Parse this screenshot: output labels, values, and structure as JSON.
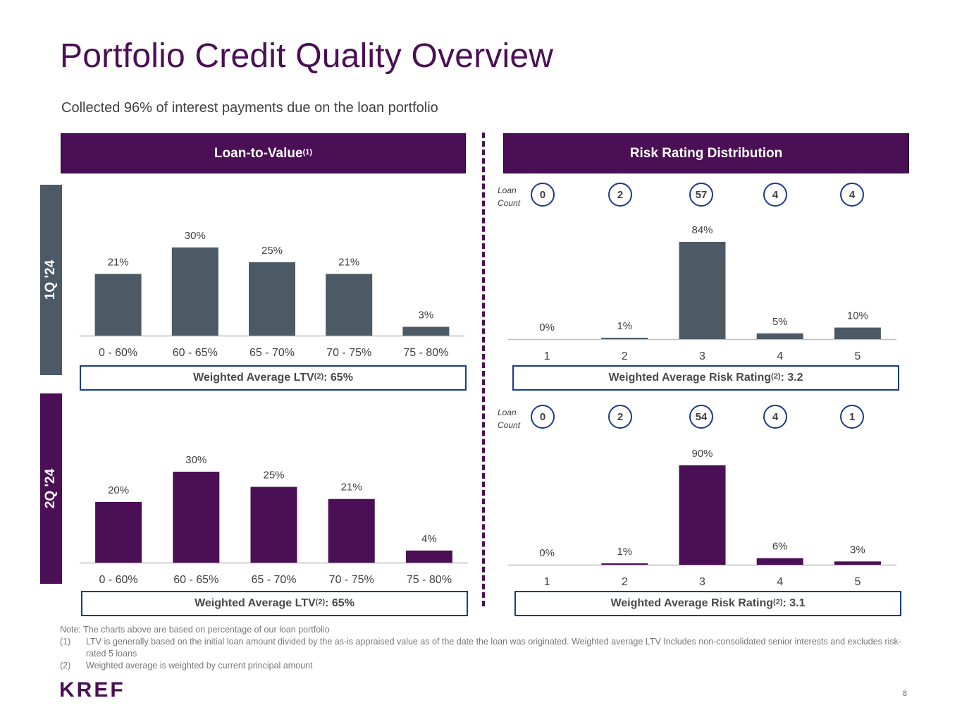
{
  "title": "Portfolio Credit Quality Overview",
  "subtitle": "Collected 96% of interest payments due on the loan portfolio",
  "ltv_header": {
    "label": "Loan-to-Value",
    "sup": "(1)"
  },
  "risk_header": {
    "label": "Risk Rating Distribution"
  },
  "quarters": {
    "q1": "1Q '24",
    "q2": "2Q '24"
  },
  "colors": {
    "purple": "#4a0f54",
    "slate": "#4c5a65",
    "blue": "#1a3a8f"
  },
  "loan_count_label": {
    "line1": "Loan",
    "line2": "Count"
  },
  "loan_counts": {
    "q1": [
      "0",
      "2",
      "57",
      "4",
      "4"
    ],
    "q2": [
      "0",
      "2",
      "54",
      "4",
      "1"
    ]
  },
  "weighted": {
    "ltv_q1": {
      "prefix": "Weighted Average LTV",
      "sup": "(2)",
      "suffix": ": 65%"
    },
    "ltv_q2": {
      "prefix": "Weighted Average LTV",
      "sup": "(2)",
      "suffix": ": 65%"
    },
    "risk_q1": {
      "prefix": "Weighted Average Risk Rating",
      "sup": "(2)",
      "suffix": ": 3.2"
    },
    "risk_q2": {
      "prefix": "Weighted Average Risk Rating",
      "sup": "(2)",
      "suffix": ": 3.1"
    }
  },
  "chart_data": [
    {
      "id": "ltv-1q24",
      "type": "bar",
      "title": "Loan-to-Value 1Q '24",
      "categories": [
        "0 - 60%",
        "60 - 65%",
        "65 - 70%",
        "70 - 75%",
        "75 - 80%"
      ],
      "values": [
        21,
        30,
        25,
        21,
        3
      ],
      "labels": [
        "21%",
        "30%",
        "25%",
        "21%",
        "3%"
      ],
      "ylim": [
        0,
        30
      ],
      "color": "#4c5a65"
    },
    {
      "id": "risk-1q24",
      "type": "bar",
      "title": "Risk Rating Distribution 1Q '24",
      "categories": [
        "1",
        "2",
        "3",
        "4",
        "5"
      ],
      "values": [
        0,
        1,
        84,
        5,
        10
      ],
      "labels": [
        "0%",
        "1%",
        "84%",
        "5%",
        "10%"
      ],
      "ylim": [
        0,
        84
      ],
      "color": "#4c5a65"
    },
    {
      "id": "ltv-2q24",
      "type": "bar",
      "title": "Loan-to-Value 2Q '24",
      "categories": [
        "0 - 60%",
        "60 - 65%",
        "65 - 70%",
        "70 - 75%",
        "75 - 80%"
      ],
      "values": [
        20,
        30,
        25,
        21,
        4
      ],
      "labels": [
        "20%",
        "30%",
        "25%",
        "21%",
        "4%"
      ],
      "ylim": [
        0,
        30
      ],
      "color": "#4a0f54"
    },
    {
      "id": "risk-2q24",
      "type": "bar",
      "title": "Risk Rating Distribution 2Q '24",
      "categories": [
        "1",
        "2",
        "3",
        "4",
        "5"
      ],
      "values": [
        0,
        1,
        90,
        6,
        3
      ],
      "labels": [
        "0%",
        "1%",
        "90%",
        "6%",
        "3%"
      ],
      "ylim": [
        0,
        90
      ],
      "color": "#4a0f54"
    }
  ],
  "notes": {
    "intro": "Note: The charts above are based on percentage of our loan portfolio",
    "items": [
      {
        "num": "(1)",
        "text": "LTV is generally based on the initial loan amount divided by the as-is appraised value as of the date the loan was originated. Weighted average LTV Includes non-consolidated senior interests and excludes risk-rated 5 loans"
      },
      {
        "num": "(2)",
        "text": "Weighted average is weighted by current principal amount"
      }
    ]
  },
  "logo": "KREF",
  "page_number": "8"
}
